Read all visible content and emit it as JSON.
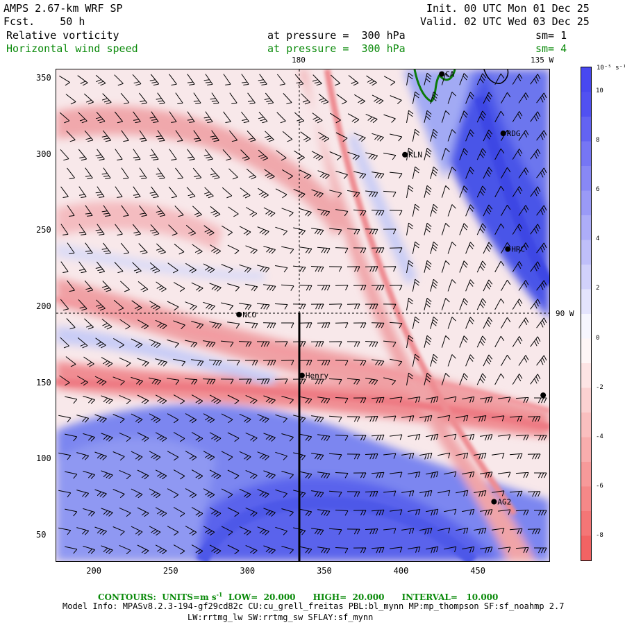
{
  "header": {
    "model": "AMPS 2.67-km WRF SP",
    "fcst": "Fcst.    50 h",
    "init": "Init. 00 UTC Mon 01 Dec 25",
    "valid": "Valid. 02 UTC Wed 03 Dec 25",
    "field1_name": "Relative vorticity",
    "field1_level": "at pressure =  300 hPa",
    "field1_sm": "sm= 1",
    "field2_name": "Horizontal wind speed",
    "field2_level": "at pressure =  300 hPa",
    "field2_sm": "sm= 4"
  },
  "map_labels": {
    "lon_180": "180",
    "lon_135w": "135 W",
    "lon_90w": "90 W"
  },
  "stations": [
    {
      "name": "RDG",
      "x": 466,
      "y": 314
    },
    {
      "name": "KLN",
      "x": 402,
      "y": 300
    },
    {
      "name": "HRC",
      "x": 469,
      "y": 238
    },
    {
      "name": "NCO",
      "x": 294,
      "y": 195
    },
    {
      "name": "Henry",
      "x": 335,
      "y": 155
    },
    {
      "name": "AG2",
      "x": 460,
      "y": 72
    },
    {
      "name": "",
      "x": 492,
      "y": 142
    },
    {
      "name": "CA",
      "x": 426,
      "y": 353
    }
  ],
  "colorbar": {
    "unit": "10⁻⁵ s⁻¹",
    "tick_labels": [
      "10",
      "8",
      "6",
      "4",
      "2",
      "0",
      "-2",
      "-4",
      "-6",
      "-8"
    ],
    "levels": [
      -9,
      11
    ],
    "colors": {
      "negative": "#f04848",
      "zero": "#ffffff",
      "positive": "#4848f0"
    }
  },
  "axes": {
    "x_ticks": [
      "200",
      "250",
      "300",
      "350",
      "400",
      "450"
    ],
    "y_ticks": [
      "350",
      "300",
      "250",
      "200",
      "150",
      "100",
      "50"
    ],
    "xlim": [
      175,
      496
    ],
    "ylim": [
      33,
      356
    ]
  },
  "footer": {
    "contours": "CONTOURS:  UNITS=m s",
    "contours_sup": "-1",
    "contours_rest": "  LOW=  20.000      HIGH=  20.000      INTERVAL=   10.000",
    "model_info": "Model Info: MPASv8.2.3-194-gf29cd82c CU:cu_grell_freitas PBL:bl_mynn MP:mp_thompson SF:sf_noahmp 2.7",
    "model_info2": "LW:rrtmg_lw SW:rrtmg_sw SFLAY:sf_mynn"
  }
}
